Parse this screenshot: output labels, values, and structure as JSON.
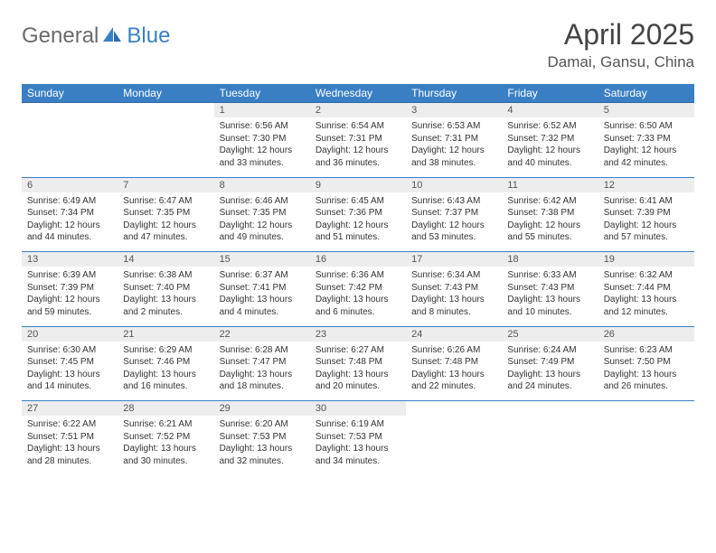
{
  "logo": {
    "part1": "General",
    "part2": "Blue"
  },
  "title": "April 2025",
  "location": "Damai, Gansu, China",
  "colors": {
    "header_bg": "#3a7fc4",
    "header_text": "#ffffff",
    "daynum_bg": "#ededed",
    "row_divider": "#3a7fc4",
    "page_bg": "#ffffff",
    "body_text": "#333333",
    "logo_gray": "#6b6b6b",
    "logo_blue": "#3a7fc4"
  },
  "day_headers": [
    "Sunday",
    "Monday",
    "Tuesday",
    "Wednesday",
    "Thursday",
    "Friday",
    "Saturday"
  ],
  "weeks": [
    {
      "nums": [
        "",
        "",
        "1",
        "2",
        "3",
        "4",
        "5"
      ],
      "cells": [
        null,
        null,
        {
          "sunrise": "Sunrise: 6:56 AM",
          "sunset": "Sunset: 7:30 PM",
          "daylight": "Daylight: 12 hours and 33 minutes."
        },
        {
          "sunrise": "Sunrise: 6:54 AM",
          "sunset": "Sunset: 7:31 PM",
          "daylight": "Daylight: 12 hours and 36 minutes."
        },
        {
          "sunrise": "Sunrise: 6:53 AM",
          "sunset": "Sunset: 7:31 PM",
          "daylight": "Daylight: 12 hours and 38 minutes."
        },
        {
          "sunrise": "Sunrise: 6:52 AM",
          "sunset": "Sunset: 7:32 PM",
          "daylight": "Daylight: 12 hours and 40 minutes."
        },
        {
          "sunrise": "Sunrise: 6:50 AM",
          "sunset": "Sunset: 7:33 PM",
          "daylight": "Daylight: 12 hours and 42 minutes."
        }
      ]
    },
    {
      "nums": [
        "6",
        "7",
        "8",
        "9",
        "10",
        "11",
        "12"
      ],
      "cells": [
        {
          "sunrise": "Sunrise: 6:49 AM",
          "sunset": "Sunset: 7:34 PM",
          "daylight": "Daylight: 12 hours and 44 minutes."
        },
        {
          "sunrise": "Sunrise: 6:47 AM",
          "sunset": "Sunset: 7:35 PM",
          "daylight": "Daylight: 12 hours and 47 minutes."
        },
        {
          "sunrise": "Sunrise: 6:46 AM",
          "sunset": "Sunset: 7:35 PM",
          "daylight": "Daylight: 12 hours and 49 minutes."
        },
        {
          "sunrise": "Sunrise: 6:45 AM",
          "sunset": "Sunset: 7:36 PM",
          "daylight": "Daylight: 12 hours and 51 minutes."
        },
        {
          "sunrise": "Sunrise: 6:43 AM",
          "sunset": "Sunset: 7:37 PM",
          "daylight": "Daylight: 12 hours and 53 minutes."
        },
        {
          "sunrise": "Sunrise: 6:42 AM",
          "sunset": "Sunset: 7:38 PM",
          "daylight": "Daylight: 12 hours and 55 minutes."
        },
        {
          "sunrise": "Sunrise: 6:41 AM",
          "sunset": "Sunset: 7:39 PM",
          "daylight": "Daylight: 12 hours and 57 minutes."
        }
      ]
    },
    {
      "nums": [
        "13",
        "14",
        "15",
        "16",
        "17",
        "18",
        "19"
      ],
      "cells": [
        {
          "sunrise": "Sunrise: 6:39 AM",
          "sunset": "Sunset: 7:39 PM",
          "daylight": "Daylight: 12 hours and 59 minutes."
        },
        {
          "sunrise": "Sunrise: 6:38 AM",
          "sunset": "Sunset: 7:40 PM",
          "daylight": "Daylight: 13 hours and 2 minutes."
        },
        {
          "sunrise": "Sunrise: 6:37 AM",
          "sunset": "Sunset: 7:41 PM",
          "daylight": "Daylight: 13 hours and 4 minutes."
        },
        {
          "sunrise": "Sunrise: 6:36 AM",
          "sunset": "Sunset: 7:42 PM",
          "daylight": "Daylight: 13 hours and 6 minutes."
        },
        {
          "sunrise": "Sunrise: 6:34 AM",
          "sunset": "Sunset: 7:43 PM",
          "daylight": "Daylight: 13 hours and 8 minutes."
        },
        {
          "sunrise": "Sunrise: 6:33 AM",
          "sunset": "Sunset: 7:43 PM",
          "daylight": "Daylight: 13 hours and 10 minutes."
        },
        {
          "sunrise": "Sunrise: 6:32 AM",
          "sunset": "Sunset: 7:44 PM",
          "daylight": "Daylight: 13 hours and 12 minutes."
        }
      ]
    },
    {
      "nums": [
        "20",
        "21",
        "22",
        "23",
        "24",
        "25",
        "26"
      ],
      "cells": [
        {
          "sunrise": "Sunrise: 6:30 AM",
          "sunset": "Sunset: 7:45 PM",
          "daylight": "Daylight: 13 hours and 14 minutes."
        },
        {
          "sunrise": "Sunrise: 6:29 AM",
          "sunset": "Sunset: 7:46 PM",
          "daylight": "Daylight: 13 hours and 16 minutes."
        },
        {
          "sunrise": "Sunrise: 6:28 AM",
          "sunset": "Sunset: 7:47 PM",
          "daylight": "Daylight: 13 hours and 18 minutes."
        },
        {
          "sunrise": "Sunrise: 6:27 AM",
          "sunset": "Sunset: 7:48 PM",
          "daylight": "Daylight: 13 hours and 20 minutes."
        },
        {
          "sunrise": "Sunrise: 6:26 AM",
          "sunset": "Sunset: 7:48 PM",
          "daylight": "Daylight: 13 hours and 22 minutes."
        },
        {
          "sunrise": "Sunrise: 6:24 AM",
          "sunset": "Sunset: 7:49 PM",
          "daylight": "Daylight: 13 hours and 24 minutes."
        },
        {
          "sunrise": "Sunrise: 6:23 AM",
          "sunset": "Sunset: 7:50 PM",
          "daylight": "Daylight: 13 hours and 26 minutes."
        }
      ]
    },
    {
      "nums": [
        "27",
        "28",
        "29",
        "30",
        "",
        "",
        ""
      ],
      "cells": [
        {
          "sunrise": "Sunrise: 6:22 AM",
          "sunset": "Sunset: 7:51 PM",
          "daylight": "Daylight: 13 hours and 28 minutes."
        },
        {
          "sunrise": "Sunrise: 6:21 AM",
          "sunset": "Sunset: 7:52 PM",
          "daylight": "Daylight: 13 hours and 30 minutes."
        },
        {
          "sunrise": "Sunrise: 6:20 AM",
          "sunset": "Sunset: 7:53 PM",
          "daylight": "Daylight: 13 hours and 32 minutes."
        },
        {
          "sunrise": "Sunrise: 6:19 AM",
          "sunset": "Sunset: 7:53 PM",
          "daylight": "Daylight: 13 hours and 34 minutes."
        },
        null,
        null,
        null
      ]
    }
  ]
}
